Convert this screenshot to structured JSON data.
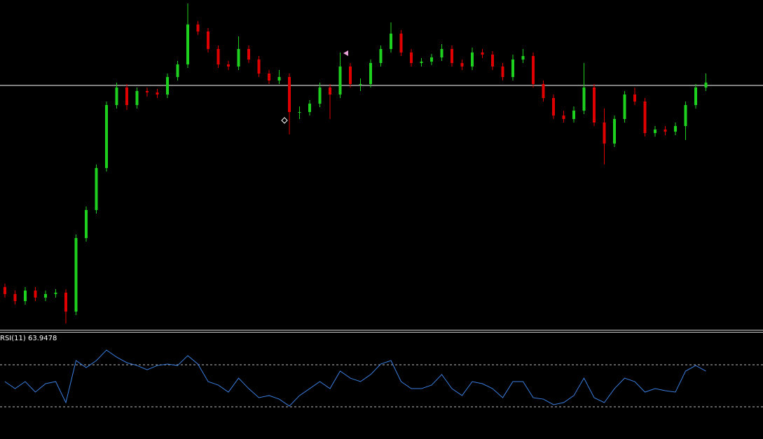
{
  "chart_data": [
    {
      "type": "candlestick",
      "up_color": "#1fd11f",
      "down_color": "#e00000",
      "line_color": "#ffffff",
      "ylim": [
        0,
        470
      ],
      "hline": 348,
      "open": [
        60,
        50,
        40,
        55,
        45,
        50,
        52,
        25,
        130,
        170,
        230,
        320,
        345,
        320,
        340,
        338,
        335,
        360,
        378,
        435,
        425,
        400,
        378,
        375,
        400,
        385,
        365,
        355,
        360,
        310,
        310,
        322,
        345,
        335,
        375,
        350,
        350,
        380,
        400,
        422,
        395,
        380,
        382,
        388,
        400,
        380,
        375,
        395,
        392,
        375,
        360,
        385,
        390,
        350,
        330,
        305,
        300,
        312,
        345,
        295,
        265,
        300,
        335,
        325,
        280,
        285,
        282,
        290,
        320,
        345
      ],
      "high": [
        65,
        55,
        60,
        60,
        55,
        57,
        57,
        135,
        175,
        235,
        325,
        352,
        350,
        345,
        345,
        343,
        365,
        383,
        465,
        440,
        430,
        405,
        383,
        418,
        405,
        390,
        370,
        370,
        365,
        318,
        327,
        352,
        350,
        395,
        380,
        358,
        385,
        405,
        438,
        427,
        400,
        387,
        393,
        407,
        405,
        385,
        402,
        400,
        397,
        380,
        392,
        400,
        395,
        355,
        335,
        312,
        318,
        380,
        350,
        315,
        305,
        340,
        345,
        330,
        290,
        290,
        295,
        325,
        350,
        365
      ],
      "low": [
        45,
        35,
        35,
        40,
        40,
        45,
        8,
        20,
        125,
        165,
        225,
        315,
        313,
        315,
        332,
        330,
        330,
        355,
        373,
        420,
        395,
        373,
        370,
        370,
        380,
        360,
        350,
        350,
        278,
        300,
        305,
        317,
        300,
        330,
        345,
        340,
        345,
        375,
        395,
        390,
        375,
        375,
        377,
        383,
        375,
        370,
        370,
        387,
        370,
        355,
        355,
        380,
        345,
        325,
        300,
        295,
        295,
        307,
        290,
        235,
        260,
        295,
        320,
        275,
        275,
        277,
        277,
        270,
        315,
        340
      ],
      "close": [
        50,
        40,
        55,
        45,
        50,
        52,
        25,
        130,
        170,
        230,
        320,
        345,
        320,
        340,
        338,
        335,
        360,
        378,
        435,
        425,
        400,
        378,
        375,
        400,
        385,
        365,
        355,
        360,
        310,
        310,
        322,
        345,
        335,
        375,
        350,
        350,
        380,
        400,
        422,
        395,
        380,
        382,
        388,
        400,
        380,
        375,
        395,
        392,
        375,
        360,
        385,
        390,
        350,
        330,
        305,
        300,
        312,
        345,
        295,
        265,
        300,
        335,
        325,
        280,
        285,
        282,
        290,
        320,
        345,
        352
      ]
    },
    {
      "type": "line",
      "title": "RSI(11) 63.9478",
      "color": "#3b7ee0",
      "level_color": "#bbbbbb",
      "ylim": [
        0,
        100
      ],
      "levels": [
        30,
        70
      ],
      "values": [
        54,
        47.3,
        54,
        44,
        52,
        54,
        34,
        74,
        67.3,
        74,
        84,
        77.3,
        72,
        69.3,
        65.3,
        69.3,
        70.7,
        69.3,
        78.7,
        70.7,
        54,
        50.7,
        44,
        57.3,
        47.3,
        38.7,
        40.7,
        37.3,
        30.7,
        40.7,
        47.3,
        54,
        47.3,
        64,
        57.3,
        54,
        60.7,
        70.7,
        74,
        54,
        47.3,
        47.3,
        50.7,
        60.7,
        47.3,
        40.7,
        54,
        52,
        47.3,
        38.7,
        54,
        54,
        38.7,
        37.3,
        32,
        34,
        40.7,
        57.3,
        38.7,
        34,
        47.3,
        57.3,
        54,
        44,
        47.3,
        45.3,
        44,
        64,
        69.3,
        63.9478
      ]
    }
  ]
}
